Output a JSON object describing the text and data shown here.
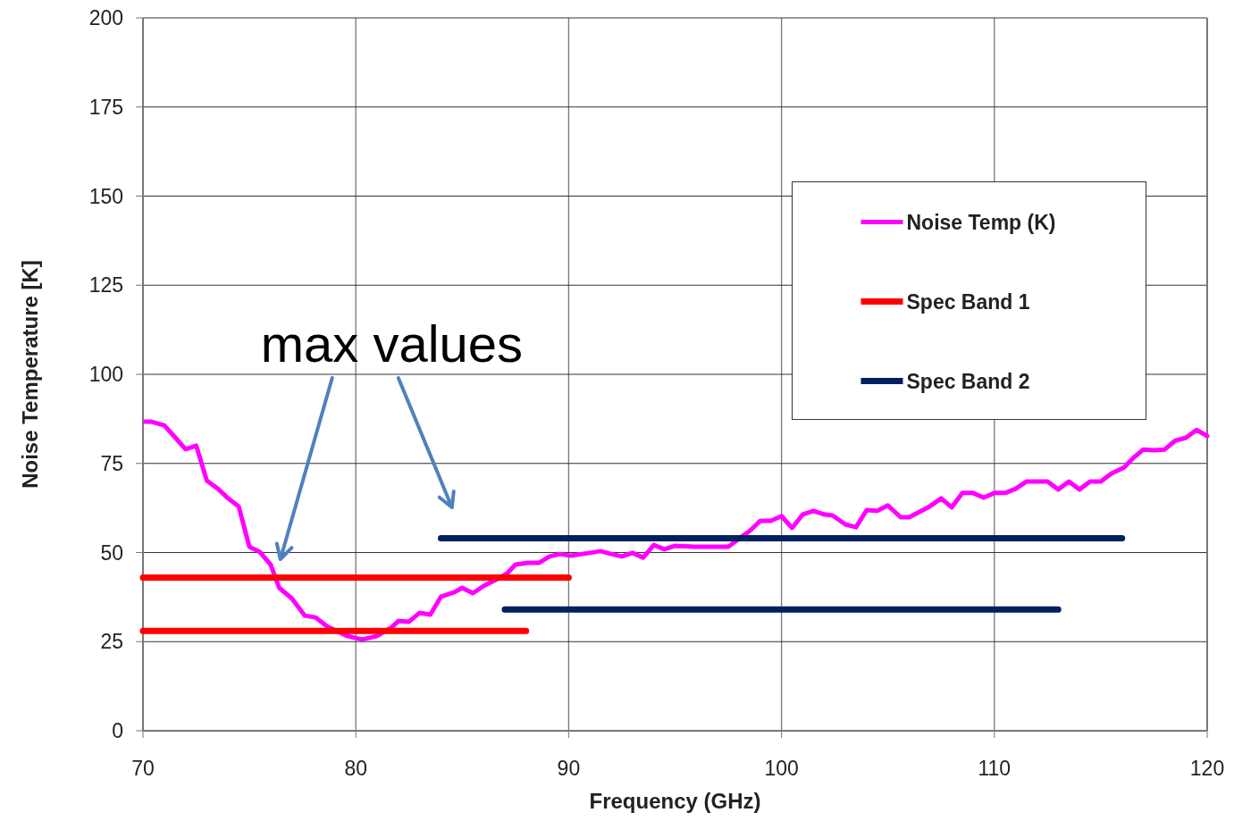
{
  "chart_data": {
    "type": "line",
    "xlabel": "Frequency (GHz)",
    "ylabel": "Noise Temperature [K]",
    "xlim": [
      70,
      120
    ],
    "xticks": [
      70,
      80,
      90,
      100,
      110,
      120
    ],
    "ylim": [
      0,
      200
    ],
    "yticks": [
      0,
      25,
      50,
      75,
      100,
      125,
      150,
      175,
      200
    ],
    "grid": true,
    "legend": "right",
    "line_style": "solid",
    "marker": "none",
    "annotations": [
      "max values"
    ],
    "series": [
      {
        "name": "Noise Temp (K)",
        "color": "#ff00ff",
        "x": [
          70.1,
          70.4,
          71.0,
          71.6,
          72.0,
          72.5,
          73.0,
          73.5,
          74.0,
          74.5,
          75.0,
          75.5,
          76.0,
          76.4,
          77.0,
          77.6,
          78.1,
          78.7,
          79.6,
          80.3,
          81.0,
          81.7,
          82.0,
          82.5,
          83.0,
          83.5,
          84.0,
          84.6,
          85.0,
          85.5,
          86.0,
          86.6,
          87.1,
          87.5,
          88.1,
          88.6,
          89.1,
          89.6,
          90.1,
          91.0,
          91.5,
          92.0,
          92.5,
          93.0,
          93.5,
          94.0,
          94.5,
          95.0,
          95.9,
          96.6,
          97.5,
          98.0,
          98.5,
          99.0,
          99.5,
          100.0,
          100.5,
          101.0,
          101.5,
          102.0,
          102.4,
          103.0,
          103.5,
          104.0,
          104.5,
          105.0,
          105.6,
          106.0,
          106.9,
          107.5,
          108.0,
          108.5,
          109.0,
          109.5,
          110.0,
          110.5,
          111.0,
          111.5,
          112.5,
          113.0,
          113.5,
          114.0,
          114.5,
          115.0,
          115.5,
          116.1,
          116.5,
          117.0,
          117.5,
          118.0,
          118.5,
          119.0,
          119.5,
          120.0
        ],
        "values": [
          86.7,
          86.7,
          85.7,
          81.7,
          79,
          80,
          70.2,
          68,
          65.2,
          62.9,
          51.6,
          50.1,
          46.6,
          40.1,
          37.1,
          32.3,
          31.8,
          29.1,
          26.6,
          25.6,
          26.6,
          29.1,
          30.8,
          30.6,
          33.1,
          32.6,
          37.6,
          38.8,
          40.1,
          38.6,
          40.6,
          42.4,
          44.1,
          46.6,
          47.1,
          47.1,
          48.9,
          49.6,
          49.1,
          49.9,
          50.4,
          49.6,
          48.9,
          49.9,
          48.6,
          52.1,
          50.9,
          51.9,
          51.6,
          51.6,
          51.6,
          53.9,
          56,
          58.9,
          58.9,
          60.2,
          56.9,
          60.7,
          61.7,
          60.7,
          60.4,
          57.9,
          57.1,
          61.9,
          61.7,
          63.2,
          59.9,
          59.9,
          62.7,
          65.2,
          62.7,
          66.7,
          66.7,
          65.4,
          66.7,
          66.7,
          67.9,
          69.9,
          69.9,
          67.7,
          69.9,
          67.7,
          69.9,
          69.9,
          72.2,
          73.9,
          76.4,
          78.9,
          78.7,
          78.9,
          81.4,
          82.2,
          84.4,
          82.7
        ]
      },
      {
        "name": "Spec Band 1",
        "color": "#ff0000",
        "x": [
          70,
          90,
          null,
          70,
          88
        ],
        "values": [
          43,
          43,
          null,
          28,
          28
        ]
      },
      {
        "name": "Spec Band 2",
        "color": "#002060",
        "x": [
          84,
          116,
          null,
          87,
          113
        ],
        "values": [
          54,
          54,
          null,
          34,
          34
        ]
      }
    ]
  }
}
